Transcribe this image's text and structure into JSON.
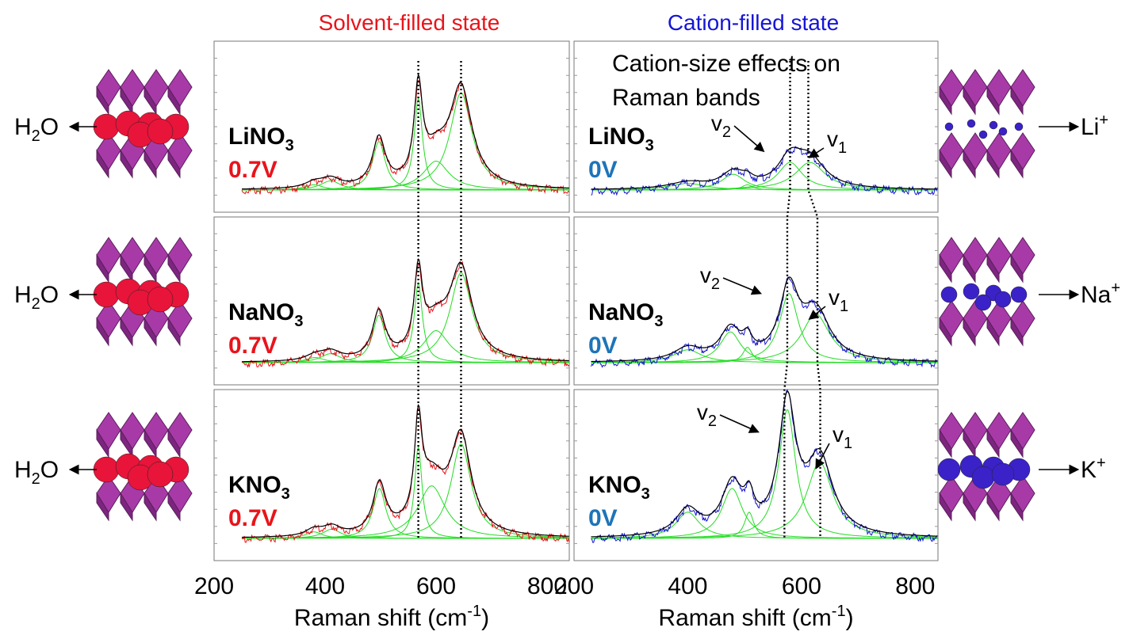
{
  "titles": {
    "left": "Solvent-filled state",
    "right": "Cation-filled state"
  },
  "annotation": {
    "line1": "Cation-size effects on",
    "line2": "Raman bands"
  },
  "axis": {
    "xlabel": "Raman shift (cm",
    "xlabel_sup": "-1",
    "xlabel_close": ")",
    "xticks": [
      200,
      400,
      600,
      800
    ],
    "xlim": [
      200,
      840
    ]
  },
  "band_labels": {
    "v2": "v",
    "v2_sub": "2",
    "v1": "v",
    "v1_sub": "1"
  },
  "solvent_label": {
    "main": "H",
    "sub": "2",
    "rest": "O"
  },
  "cations": [
    {
      "main": "Li",
      "sup": "+"
    },
    {
      "main": "Na",
      "sup": "+"
    },
    {
      "main": "K",
      "sup": "+"
    }
  ],
  "colors": {
    "solvent_title": "#e8141b",
    "cation_title": "#1515d6",
    "solvent_data": "#e8141b",
    "cation_data": "#1515d6",
    "fit_total": "#000000",
    "components": "#22dd22",
    "solvent_voltage": "#e8141b",
    "cation_voltage": "#1e74b8",
    "octahedra": "#a83aa8",
    "solvent_sphere": "#e8143a",
    "cation_sphere": "#3a22c8"
  },
  "chart_data": [
    {
      "type": "line",
      "panel": "solvent",
      "salt": "LiNO",
      "salt_sub": "3",
      "voltage": "0.7V",
      "x_range": [
        250,
        840
      ],
      "components": [
        {
          "center": 380,
          "height": 0.04,
          "width": 20
        },
        {
          "center": 410,
          "height": 0.07,
          "width": 22
        },
        {
          "center": 497,
          "height": 0.37,
          "width": 14
        },
        {
          "center": 568,
          "height": 0.7,
          "width": 9
        },
        {
          "center": 600,
          "height": 0.22,
          "width": 28
        },
        {
          "center": 645,
          "height": 0.74,
          "width": 24
        }
      ],
      "dotted_lines": [
        568,
        645
      ]
    },
    {
      "type": "line",
      "panel": "cation",
      "salt": "LiNO",
      "salt_sub": "3",
      "voltage": "0V",
      "x_range": [
        230,
        840
      ],
      "components": [
        {
          "center": 400,
          "height": 0.05,
          "width": 40
        },
        {
          "center": 480,
          "height": 0.12,
          "width": 25
        },
        {
          "center": 505,
          "height": 0.04,
          "width": 12
        },
        {
          "center": 580,
          "height": 0.21,
          "width": 26
        },
        {
          "center": 615,
          "height": 0.21,
          "width": 32
        }
      ],
      "dotted_lines": [
        580,
        612
      ]
    },
    {
      "type": "line",
      "panel": "solvent",
      "salt": "NaNO",
      "salt_sub": "3",
      "voltage": "0.7V",
      "x_range": [
        250,
        840
      ],
      "components": [
        {
          "center": 382,
          "height": 0.04,
          "width": 20
        },
        {
          "center": 410,
          "height": 0.07,
          "width": 22
        },
        {
          "center": 497,
          "height": 0.37,
          "width": 14
        },
        {
          "center": 568,
          "height": 0.62,
          "width": 9
        },
        {
          "center": 600,
          "height": 0.25,
          "width": 28
        },
        {
          "center": 645,
          "height": 0.7,
          "width": 24
        }
      ],
      "dotted_lines": [
        568,
        645
      ]
    },
    {
      "type": "line",
      "panel": "cation",
      "salt": "NaNO",
      "salt_sub": "3",
      "voltage": "0V",
      "x_range": [
        230,
        840
      ],
      "components": [
        {
          "center": 400,
          "height": 0.1,
          "width": 30
        },
        {
          "center": 475,
          "height": 0.24,
          "width": 22
        },
        {
          "center": 505,
          "height": 0.12,
          "width": 10
        },
        {
          "center": 578,
          "height": 0.54,
          "width": 20
        },
        {
          "center": 625,
          "height": 0.38,
          "width": 30
        }
      ],
      "dotted_lines": [
        575,
        628
      ]
    },
    {
      "type": "line",
      "panel": "solvent",
      "salt": "KNO",
      "salt_sub": "3",
      "voltage": "0.7V",
      "x_range": [
        250,
        840
      ],
      "components": [
        {
          "center": 380,
          "height": 0.05,
          "width": 18
        },
        {
          "center": 412,
          "height": 0.07,
          "width": 20
        },
        {
          "center": 498,
          "height": 0.38,
          "width": 14
        },
        {
          "center": 568,
          "height": 0.7,
          "width": 8
        },
        {
          "center": 592,
          "height": 0.4,
          "width": 30
        },
        {
          "center": 645,
          "height": 0.72,
          "width": 22
        }
      ],
      "dotted_lines": [
        568,
        645
      ]
    },
    {
      "type": "line",
      "panel": "cation",
      "salt": "KNO",
      "salt_sub": "3",
      "voltage": "0V",
      "x_range": [
        230,
        840
      ],
      "components": [
        {
          "center": 400,
          "height": 0.2,
          "width": 25
        },
        {
          "center": 478,
          "height": 0.38,
          "width": 22
        },
        {
          "center": 508,
          "height": 0.2,
          "width": 10
        },
        {
          "center": 575,
          "height": 0.98,
          "width": 18
        },
        {
          "center": 632,
          "height": 0.58,
          "width": 28
        }
      ],
      "dotted_lines": [
        570,
        633
      ]
    }
  ]
}
